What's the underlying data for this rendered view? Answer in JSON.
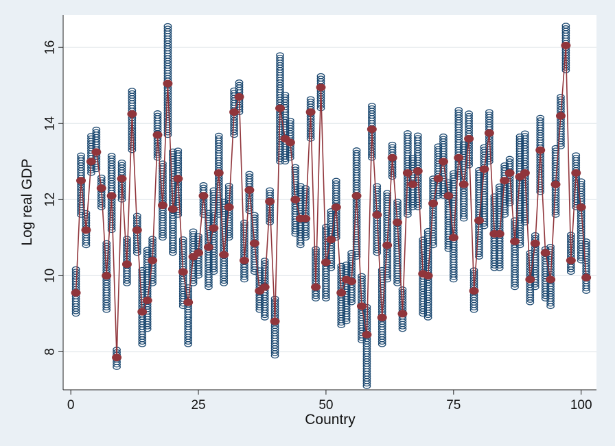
{
  "chart_data": {
    "type": "scatter",
    "xlabel": "Country",
    "ylabel": "Log real GDP",
    "xlim": [
      -1.5,
      103
    ],
    "ylim": [
      7,
      16.85
    ],
    "xticks": [
      0,
      25,
      50,
      75,
      100
    ],
    "yticks": [
      8,
      10,
      12,
      14,
      16
    ],
    "grid": "horizontal",
    "colors": {
      "plot_background": "#ffffff",
      "outer_background": "#eaf0f5",
      "grid": "#e3e8ec",
      "observations": "#1a476f",
      "mean_line": "#90353b"
    },
    "series": [
      {
        "marker": "hollow-circle",
        "x": [
          1,
          2,
          3,
          4,
          5,
          6,
          7,
          8,
          9,
          10,
          11,
          12,
          13,
          14,
          15,
          16,
          17,
          18,
          19,
          20,
          21,
          22,
          23,
          24,
          25,
          26,
          27,
          28,
          29,
          30,
          31,
          32,
          33,
          34,
          35,
          36,
          37,
          38,
          39,
          40,
          41,
          42,
          43,
          44,
          45,
          46,
          47,
          48,
          49,
          50,
          51,
          52,
          53,
          54,
          55,
          56,
          57,
          58,
          59,
          60,
          61,
          62,
          63,
          64,
          65,
          66,
          67,
          68,
          69,
          70,
          71,
          72,
          73,
          74,
          75,
          76,
          77,
          78,
          79,
          80,
          81,
          82,
          83,
          84,
          85,
          86,
          87,
          88,
          89,
          90,
          91,
          92,
          93,
          94,
          95,
          96,
          97,
          98,
          99,
          100,
          101
        ],
        "min": [
          9.0,
          11.6,
          10.8,
          12.7,
          12.8,
          11.8,
          9.1,
          11.2,
          7.6,
          12.0,
          9.8,
          13.3,
          10.6,
          8.2,
          8.6,
          9.8,
          13.1,
          11.0,
          13.7,
          10.6,
          11.6,
          9.2,
          8.2,
          9.8,
          10.0,
          11.6,
          9.7,
          10.1,
          11.6,
          9.8,
          11.0,
          13.7,
          14.3,
          9.9,
          11.7,
          10.1,
          9.1,
          8.9,
          11.4,
          7.9,
          13.0,
          13.0,
          13.1,
          11.1,
          10.8,
          11.0,
          13.6,
          9.4,
          14.4,
          9.4,
          10.2,
          11.0,
          8.7,
          8.8,
          9.3,
          10.5,
          8.3,
          7.1,
          13.1,
          10.6,
          8.2,
          9.9,
          12.6,
          9.8,
          8.6,
          11.6,
          11.8,
          11.8,
          9.0,
          8.9,
          10.8,
          12.1,
          12.1,
          10.7,
          9.9,
          12.6,
          11.5,
          12.9,
          9.1,
          10.5,
          11.3,
          13.0,
          10.2,
          10.2,
          11.6,
          11.9,
          9.7,
          10.8,
          11.4,
          9.3,
          9.7,
          12.2,
          9.4,
          9.2,
          11.6,
          13.4,
          15.4,
          10.1,
          11.8,
          10.4,
          9.6
        ],
        "max": [
          10.2,
          13.2,
          11.7,
          13.7,
          13.9,
          12.6,
          10.9,
          13.2,
          8.1,
          13.0,
          11.0,
          14.9,
          11.6,
          10.2,
          10.7,
          11.0,
          14.3,
          13.0,
          16.6,
          13.3,
          13.3,
          11.0,
          9.7,
          11.2,
          11.1,
          12.4,
          11.7,
          12.3,
          13.7,
          12.0,
          12.4,
          14.9,
          15.1,
          11.4,
          12.7,
          11.6,
          10.2,
          10.4,
          12.3,
          9.4,
          15.8,
          14.8,
          14.1,
          12.9,
          12.4,
          12.3,
          14.7,
          10.7,
          15.3,
          11.3,
          11.7,
          12.5,
          10.3,
          10.3,
          10.6,
          13.3,
          10.0,
          9.2,
          14.5,
          12.4,
          10.2,
          12.2,
          13.5,
          12.0,
          9.7,
          13.8,
          13.1,
          13.7,
          11.0,
          11.2,
          12.6,
          13.4,
          13.7,
          12.5,
          12.7,
          14.4,
          13.5,
          14.3,
          10.2,
          12.8,
          13.4,
          14.3,
          12.1,
          12.4,
          12.9,
          13.1,
          11.5,
          13.7,
          13.8,
          10.6,
          11.1,
          14.2,
          10.7,
          10.8,
          13.4,
          14.7,
          16.6,
          11.1,
          13.2,
          12.5,
          10.9
        ]
      },
      {
        "marker": "filled-circle",
        "line": true,
        "x": [
          1,
          2,
          3,
          4,
          5,
          6,
          7,
          8,
          9,
          10,
          11,
          12,
          13,
          14,
          15,
          16,
          17,
          18,
          19,
          20,
          21,
          22,
          23,
          24,
          25,
          26,
          27,
          28,
          29,
          30,
          31,
          32,
          33,
          34,
          35,
          36,
          37,
          38,
          39,
          40,
          41,
          42,
          43,
          44,
          45,
          46,
          47,
          48,
          49,
          50,
          51,
          52,
          53,
          54,
          55,
          56,
          57,
          58,
          59,
          60,
          61,
          62,
          63,
          64,
          65,
          66,
          67,
          68,
          69,
          70,
          71,
          72,
          73,
          74,
          75,
          76,
          77,
          78,
          79,
          80,
          81,
          82,
          83,
          84,
          85,
          86,
          87,
          88,
          89,
          90,
          91,
          92,
          93,
          94,
          95,
          96,
          97,
          98,
          99,
          100,
          101
        ],
        "y": [
          9.55,
          12.5,
          11.2,
          13.0,
          13.25,
          12.3,
          10.0,
          12.1,
          7.85,
          12.55,
          10.3,
          14.25,
          11.2,
          9.05,
          9.35,
          10.4,
          13.7,
          11.85,
          15.05,
          11.75,
          12.55,
          10.1,
          9.3,
          10.5,
          10.6,
          12.1,
          10.75,
          11.25,
          12.7,
          10.55,
          11.8,
          14.3,
          14.7,
          10.4,
          12.25,
          10.85,
          9.6,
          9.7,
          11.95,
          8.8,
          14.4,
          13.6,
          13.5,
          12.0,
          11.5,
          11.5,
          14.3,
          9.7,
          14.95,
          10.35,
          10.95,
          11.8,
          9.55,
          9.9,
          9.85,
          12.1,
          9.2,
          8.45,
          13.85,
          11.6,
          8.9,
          10.8,
          13.1,
          11.4,
          9.0,
          12.7,
          12.4,
          12.75,
          10.05,
          10.0,
          11.9,
          12.55,
          13.0,
          12.1,
          11.0,
          13.1,
          12.4,
          13.6,
          9.6,
          11.45,
          12.8,
          13.75,
          11.1,
          11.1,
          12.5,
          12.7,
          10.9,
          12.6,
          12.7,
          9.9,
          10.85,
          13.3,
          10.6,
          9.9,
          12.4,
          14.2,
          16.05,
          10.4,
          12.7,
          11.8,
          9.95
        ]
      }
    ]
  }
}
